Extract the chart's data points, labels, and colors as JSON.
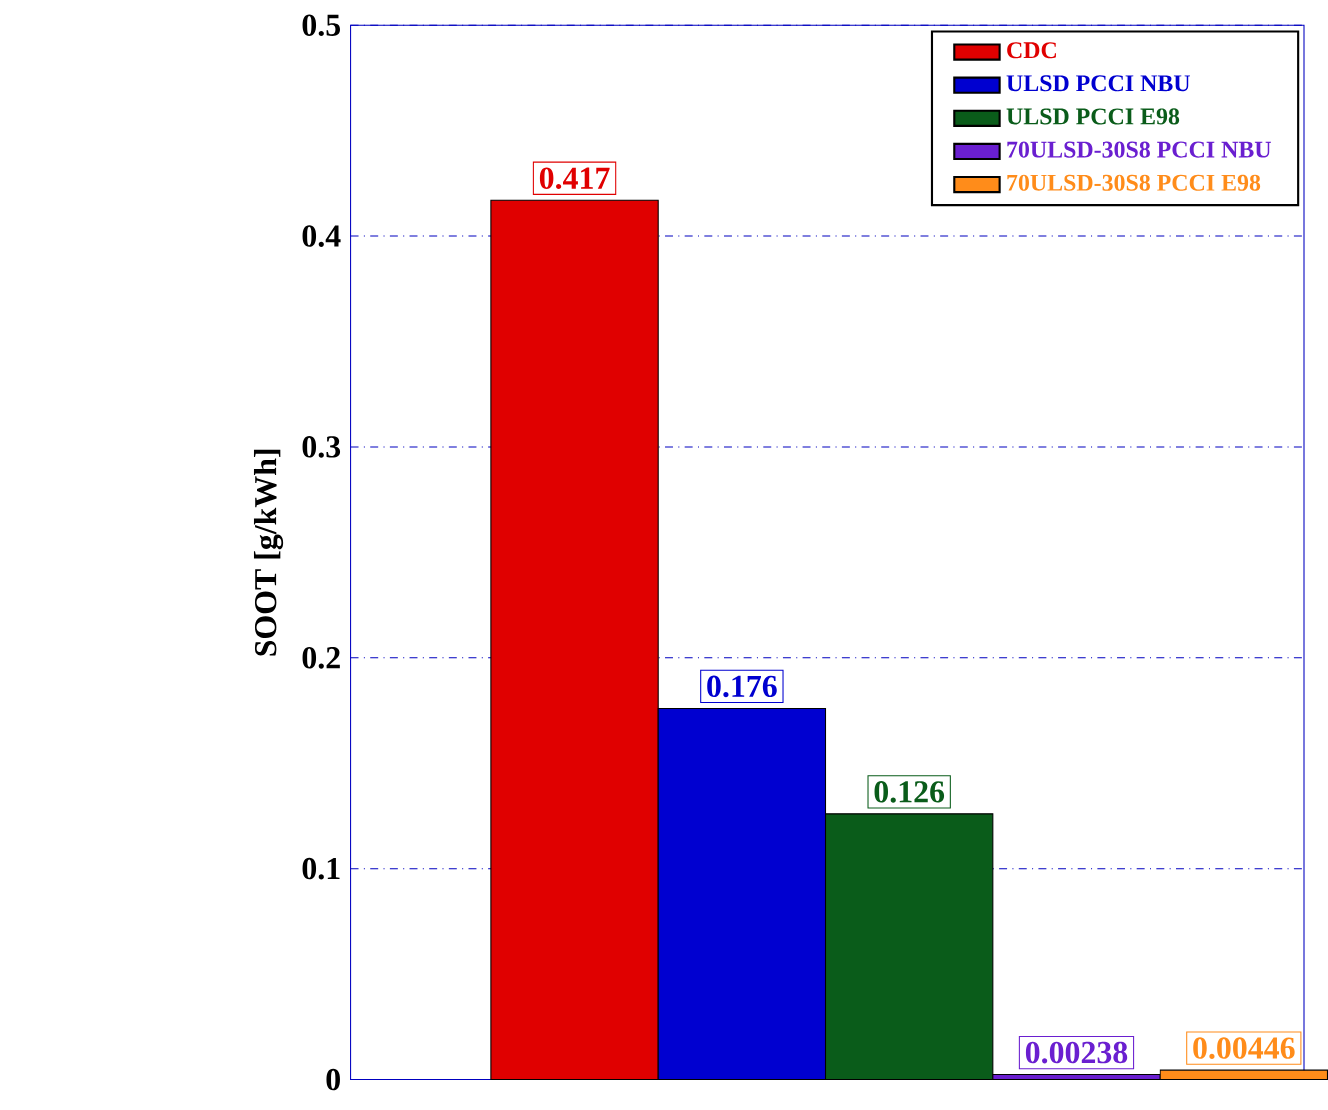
{
  "chart_data": {
    "type": "bar",
    "ylabel": "SOOT [g/kWh]",
    "categories": [
      null
    ],
    "series": [
      {
        "name": "CDC",
        "color": "#e00000",
        "values": [
          0.417
        ]
      },
      {
        "name": "ULSD PCCI NBU",
        "color": "#0000d0",
        "values": [
          0.176
        ]
      },
      {
        "name": "ULSD PCCI E98",
        "color": "#0a5c1a",
        "values": [
          0.126
        ]
      },
      {
        "name": "70ULSD-30S8 PCCI NBU",
        "color": "#6a1fd0",
        "values": [
          0.00238
        ]
      },
      {
        "name": "70ULSD-30S8 PCCI E98",
        "color": "#ff8c1a",
        "values": [
          0.00446
        ]
      }
    ],
    "ylim": [
      0,
      0.5
    ],
    "yticks": [
      0,
      0.1,
      0.2,
      0.3,
      0.4,
      0.5
    ],
    "grid": "y",
    "legend": "top right",
    "data_labels": true
  }
}
